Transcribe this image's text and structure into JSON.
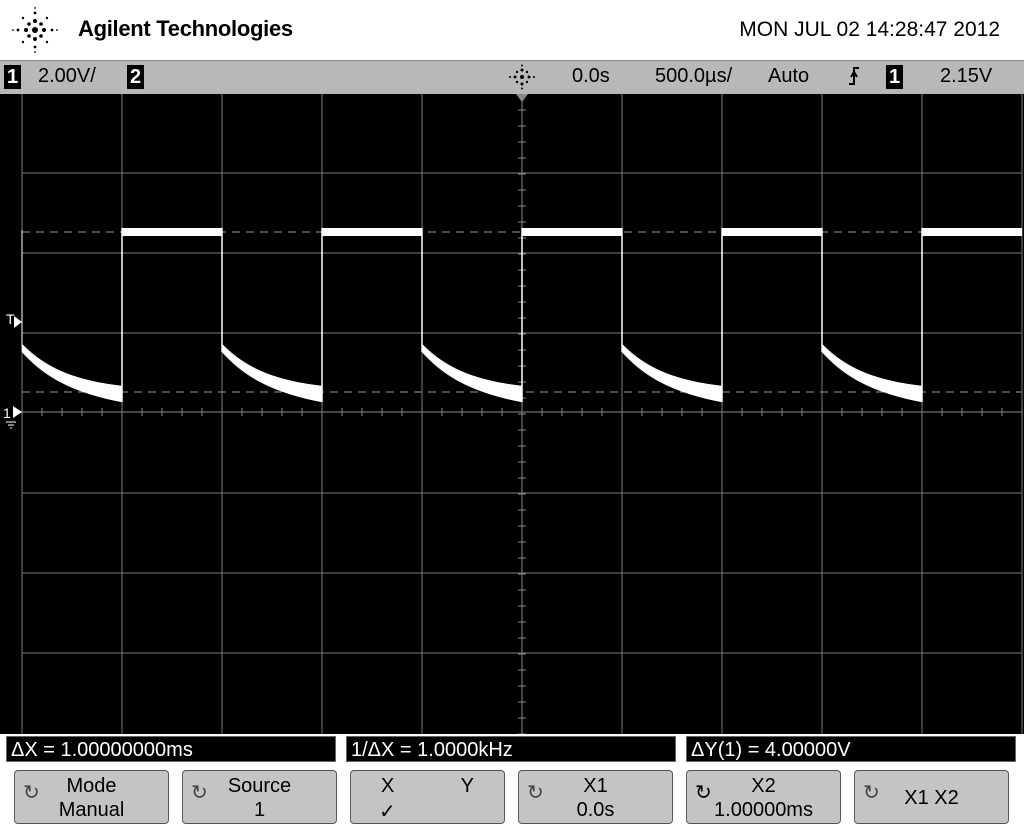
{
  "header": {
    "brand": "Agilent Technologies",
    "datetime": "MON JUL 02 14:28:47 2012"
  },
  "status": {
    "ch1_label": "1",
    "ch1_scale": "2.00V/",
    "ch2_label": "2",
    "time_delay": "0.0s",
    "time_scale": "500.0µs/",
    "trigger_mode": "Auto",
    "trigger_slope_icon": "rising-edge-icon",
    "trigger_source": "1",
    "trigger_level": "2.15V"
  },
  "markers": {
    "trigger_level": "T",
    "ch1_ground": "1"
  },
  "measurements": {
    "delta_x": "ΔX = 1.00000000ms",
    "inv_delta_x": "1/ΔX = 1.0000kHz",
    "delta_y": "ΔY(1) = 4.00000V"
  },
  "softkeys": [
    {
      "line1": "Mode",
      "line2": "Manual"
    },
    {
      "line1": "Source",
      "line2": "1"
    },
    {
      "x": "X",
      "y": "Y",
      "check": "✓"
    },
    {
      "line1": "X1",
      "line2": "0.0s"
    },
    {
      "line1": "X2",
      "line2": "1.00000ms"
    },
    {
      "line1": "X1 X2",
      "line2": ""
    }
  ],
  "colors": {
    "screen_bg": "#000000",
    "trace": "#ffffff",
    "grid": "#7a7a7a",
    "statusbar": "#b8b8b8",
    "softkey": "#c4c4c4"
  }
}
